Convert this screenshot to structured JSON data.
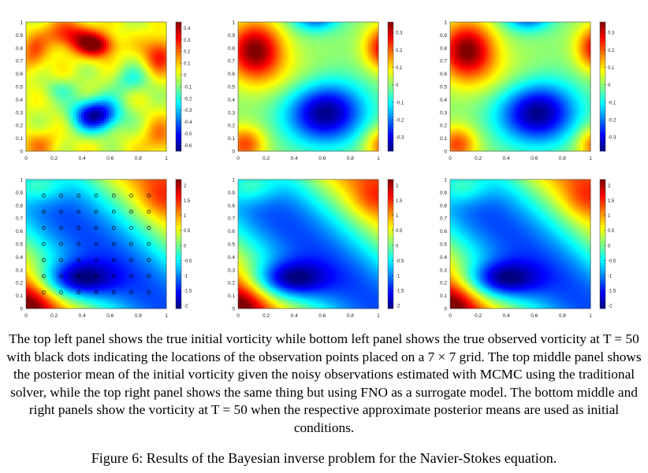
{
  "figure": {
    "panels": [
      {
        "id": "top-left",
        "field": "initial_true",
        "colorbar_ticks": [
          "0.4",
          "0.3",
          "0.2",
          "0.1",
          "0",
          "-0.1",
          "-0.2",
          "-0.3",
          "-0.4",
          "-0.5",
          "-0.6"
        ],
        "range": [
          -0.65,
          0.45
        ]
      },
      {
        "id": "top-middle",
        "field": "initial_mean",
        "colorbar_ticks": [
          "0.3",
          "0.2",
          "0.1",
          "0",
          "-0.1",
          "-0.2",
          "-0.3"
        ],
        "range": [
          -0.38,
          0.36
        ]
      },
      {
        "id": "top-right",
        "field": "initial_mean",
        "colorbar_ticks": [
          "0.3",
          "0.2",
          "0.1",
          "0",
          "-0.1",
          "-0.2",
          "-0.3"
        ],
        "range": [
          -0.38,
          0.36
        ]
      },
      {
        "id": "bottom-left",
        "field": "observed",
        "observation_grid": [
          7,
          7
        ],
        "colorbar_ticks": [
          "2",
          "1.5",
          "1",
          "0.5",
          "0",
          "-0.5",
          "-1",
          "-1.5",
          "-2"
        ],
        "range": [
          -2.1,
          2.2
        ]
      },
      {
        "id": "bottom-middle",
        "field": "observed",
        "colorbar_ticks": [
          "2",
          "1.5",
          "1",
          "0.5",
          "0",
          "-0.5",
          "-1",
          "-1.5",
          "-2"
        ],
        "range": [
          -2.1,
          2.2
        ]
      },
      {
        "id": "bottom-right",
        "field": "observed",
        "colorbar_ticks": [
          "2",
          "1.5",
          "1",
          "0.5",
          "0",
          "-0.5",
          "-1",
          "-1.5",
          "-2"
        ],
        "range": [
          -2.1,
          2.2
        ]
      }
    ],
    "y_ticks": [
      "1",
      "0.9",
      "0.8",
      "0.7",
      "0.6",
      "0.5",
      "0.4",
      "0.3",
      "0.2",
      "0.1",
      "0"
    ],
    "x_ticks": [
      "0",
      "0.2",
      "0.4",
      "0.6",
      "0.8",
      "1"
    ],
    "colormap": "jet"
  },
  "caption": {
    "description": "The top left panel shows the true initial vorticity while bottom left panel shows the true observed vorticity at T = 50 with black dots indicating the locations of the observation points placed on a 7 × 7 grid. The top middle panel shows the posterior mean of the initial vorticity given the noisy observations estimated with MCMC using the traditional solver, while the top right panel shows the same thing but using FNO as a surrogate model. The bottom middle and right panels show the vorticity at T = 50 when the respective approximate posterior means are used as initial conditions.",
    "figure_caption": "Figure 6: Results of the Bayesian inverse problem for the Navier-Stokes equation."
  }
}
